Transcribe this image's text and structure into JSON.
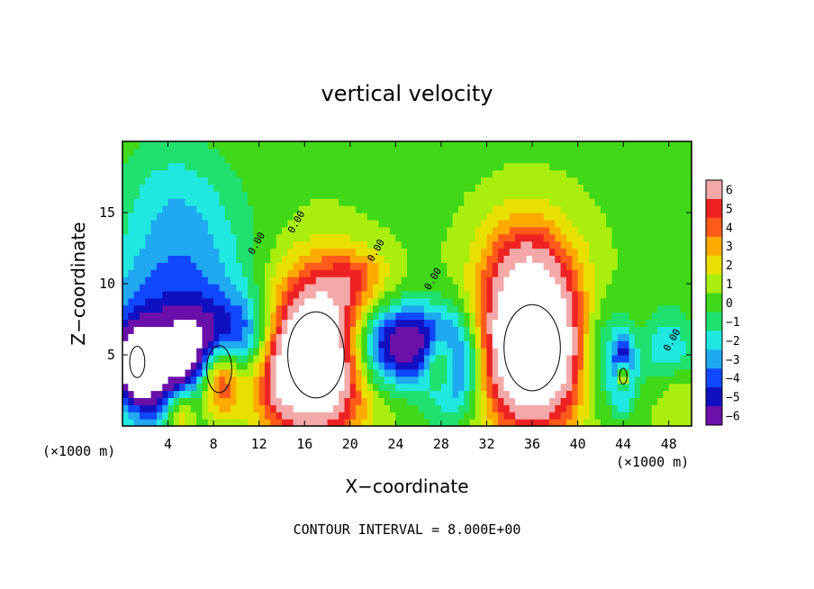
{
  "chart_data": {
    "type": "heatmap",
    "title": "vertical velocity",
    "xlabel": "X−coordinate",
    "ylabel": "Z−coordinate",
    "x_unit": "(×1000 m)",
    "z_unit": "(×1000 m)",
    "xlim": [
      0,
      50
    ],
    "ylim": [
      0,
      20
    ],
    "x_ticks": [
      4,
      8,
      12,
      16,
      20,
      24,
      28,
      32,
      36,
      40,
      44,
      48
    ],
    "y_ticks": [
      5,
      10,
      15
    ],
    "colorbar": {
      "levels": [
        6,
        5,
        4,
        3,
        2,
        1,
        0,
        -1,
        -2,
        -3,
        -4,
        -5,
        -6
      ],
      "labels": [
        "6",
        "5",
        "4",
        "3",
        "2",
        "1",
        "0",
        "−1",
        "−2",
        "−3",
        "−4",
        "−5",
        "−6"
      ],
      "colors": [
        "#f4a8a8",
        "#ee2222",
        "#ff5a1a",
        "#ffaa00",
        "#e8e000",
        "#aaee10",
        "#40d818",
        "#20e070",
        "#20e8e0",
        "#20a8f0",
        "#1048ff",
        "#1010c0",
        "#6a10a8"
      ]
    },
    "field_blobs": [
      {
        "x": 0,
        "z": 6.0,
        "rx": 9,
        "rz": 5,
        "w": -3
      },
      {
        "x": 5.5,
        "z": 11.5,
        "rx": 6,
        "rz": 5,
        "w": -3
      },
      {
        "x": 4.5,
        "z": 17.0,
        "rx": 5,
        "rz": 4,
        "w": -1.5
      },
      {
        "x": 3.5,
        "z": 3.5,
        "rx": 3.5,
        "rz": 4,
        "w": -6
      },
      {
        "x": 1.3,
        "z": 4.5,
        "rx": 1.2,
        "rz": 2,
        "w": -8
      },
      {
        "x": 5.0,
        "z": 1.0,
        "rx": 1.5,
        "rz": 2,
        "w": 5
      },
      {
        "x": 7.5,
        "z": 5.5,
        "rx": 3,
        "rz": 2.5,
        "w": -5
      },
      {
        "x": 8.5,
        "z": 4.0,
        "rx": 2,
        "rz": 3,
        "w": 8
      },
      {
        "x": 10.5,
        "z": 6.5,
        "rx": 4,
        "rz": 3,
        "w": -4
      },
      {
        "x": 17.0,
        "z": 5.0,
        "rx": 4.5,
        "rz": 5.5,
        "w": 12
      },
      {
        "x": 13.5,
        "z": 3.5,
        "rx": 2,
        "rz": 3.5,
        "w": 2
      },
      {
        "x": 20.5,
        "z": 10.5,
        "rx": 3,
        "rz": 2,
        "w": 2.5
      },
      {
        "x": 22.5,
        "z": 5.5,
        "rx": 3.5,
        "rz": 3,
        "w": -6
      },
      {
        "x": 25.5,
        "z": 6.0,
        "rx": 2.5,
        "rz": 2.5,
        "w": -4
      },
      {
        "x": 29.0,
        "z": 4.5,
        "rx": 2.5,
        "rz": 3.5,
        "w": -7
      },
      {
        "x": 28.0,
        "z": 4.5,
        "rx": 1.5,
        "rz": 2,
        "w": 6
      },
      {
        "x": 36.0,
        "z": 5.5,
        "rx": 4.5,
        "rz": 5.5,
        "w": 12
      },
      {
        "x": 35.5,
        "z": 11.5,
        "rx": 4,
        "rz": 4,
        "w": 3.5
      },
      {
        "x": 42.0,
        "z": 5.0,
        "rx": 2,
        "rz": 4,
        "w": -3
      },
      {
        "x": 44.0,
        "z": 4.0,
        "rx": 1,
        "rz": 2.5,
        "w": -6
      },
      {
        "x": 44.0,
        "z": 3.5,
        "rx": 0.6,
        "rz": 1,
        "w": 8
      },
      {
        "x": 48.0,
        "z": 5.0,
        "rx": 2.5,
        "rz": 3,
        "w": -3
      },
      {
        "x": 48.5,
        "z": 2.5,
        "rx": 2,
        "rz": 2.5,
        "w": 2
      }
    ],
    "contour_labels": [
      "0.00",
      "0.00",
      "0.00",
      "0.00",
      "0.00"
    ]
  },
  "footer": {
    "note": "CONTOUR INTERVAL = 8.000E+00"
  }
}
